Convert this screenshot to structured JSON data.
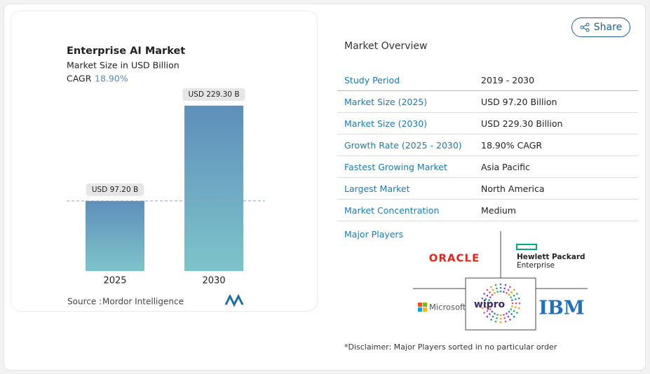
{
  "chart_data": {
    "type": "bar",
    "title": "Enterprise AI Market",
    "subtitle": "Market Size in USD Billion",
    "cagr_label": "CAGR",
    "cagr": "18.90%",
    "categories": [
      "2025",
      "2030"
    ],
    "values": [
      97.2,
      229.3
    ],
    "value_labels": [
      "USD 97.20 B",
      "USD 229.30 B"
    ],
    "source_label": "Source :",
    "source": "Mordor Intelligence"
  },
  "share": "Share",
  "overview": {
    "title": "Market Overview",
    "rows": [
      [
        "Study Period",
        "2019 - 2030"
      ],
      [
        "Market Size (2025)",
        "USD 97.20 Billion"
      ],
      [
        "Market Size (2030)",
        "USD 229.30 Billion"
      ],
      [
        "Growth Rate (2025 - 2030)",
        "18.90% CAGR"
      ],
      [
        "Fastest Growing Market",
        "Asia Pacific"
      ],
      [
        "Largest Market",
        "North America"
      ],
      [
        "Market Concentration",
        "Medium"
      ]
    ]
  },
  "major_players": {
    "title": "Major Players",
    "logos": [
      "ORACLE",
      "Hewlett Packard",
      "Enterprise",
      "Microsoft",
      "wipro",
      "IBM"
    ]
  },
  "disclaimer": "*Disclaimer: Major Players sorted in no particular order"
}
